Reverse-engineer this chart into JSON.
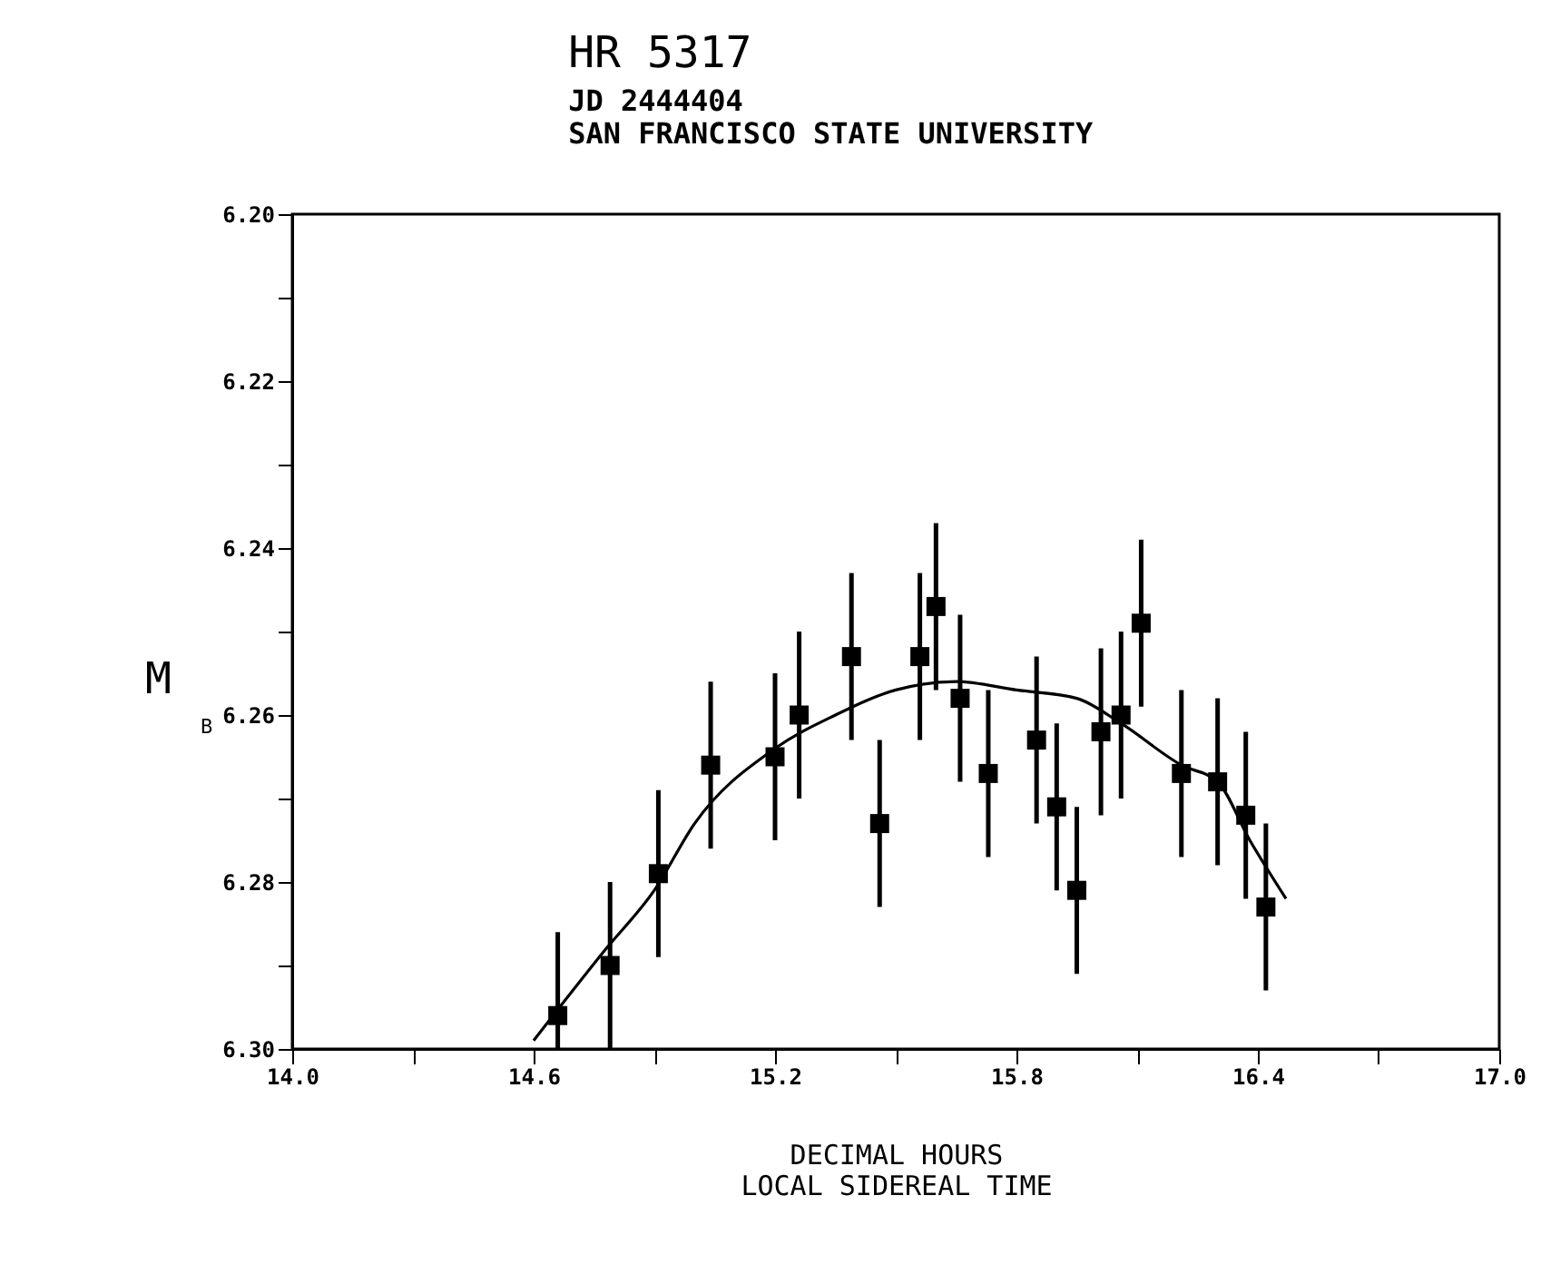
{
  "chart_data": {
    "type": "scatter",
    "title": "HR 5317",
    "subtitle": "JD  2444404",
    "xlabel": "DECIMAL HOURS",
    "ylabel": "M$_{B}$",
    "annotations": [
      "SAN FRANCISCO STATE UNIVERSITY",
      "LOCAL SIDEREAL TIME"
    ],
    "xlim": [
      14.0,
      17.0
    ],
    "ylim": [
      6.3,
      6.2
    ],
    "xticks": [
      {
        "value": 14.0,
        "label": "14.0"
      },
      {
        "value": 14.3,
        "label": null
      },
      {
        "value": 14.6,
        "label": "14.6"
      },
      {
        "value": 14.9,
        "label": null
      },
      {
        "value": 15.2,
        "label": "15.2"
      },
      {
        "value": 15.5,
        "label": null
      },
      {
        "value": 15.8,
        "label": "15.8"
      },
      {
        "value": 16.1,
        "label": null
      },
      {
        "value": 16.4,
        "label": "16.4"
      },
      {
        "value": 16.7,
        "label": null
      },
      {
        "value": 17.0,
        "label": "17.0"
      }
    ],
    "yticks": [
      {
        "value": 6.2,
        "label": "6.20"
      },
      {
        "value": 6.21,
        "label": null
      },
      {
        "value": 6.22,
        "label": "6.22"
      },
      {
        "value": 6.23,
        "label": null
      },
      {
        "value": 6.24,
        "label": "6.24"
      },
      {
        "value": 6.25,
        "label": null
      },
      {
        "value": 6.26,
        "label": "6.26"
      },
      {
        "value": 6.27,
        "label": null
      },
      {
        "value": 6.28,
        "label": "6.28"
      },
      {
        "value": 6.29,
        "label": null
      },
      {
        "value": 6.3,
        "label": "6.30"
      }
    ],
    "grid": false,
    "series": [
      {
        "color": "#000000",
        "marker": "square",
        "x": [
          14.66,
          14.79,
          14.91,
          15.04,
          15.2,
          15.26,
          15.39,
          15.46,
          15.56,
          15.6,
          15.66,
          15.73,
          15.85,
          15.9,
          15.95,
          16.01,
          16.06,
          16.11,
          16.21,
          16.3,
          16.37,
          16.42
        ],
        "values": [
          6.296,
          6.29,
          6.279,
          6.266,
          6.265,
          6.26,
          6.253,
          6.273,
          6.253,
          6.247,
          6.258,
          6.267,
          6.263,
          6.271,
          6.281,
          6.262,
          6.26,
          6.249,
          6.267,
          6.268,
          6.272,
          6.283
        ],
        "errors": [
          [
            6.286,
            6.3
          ],
          [
            6.28,
            6.3
          ],
          0.01,
          0.01,
          0.01,
          0.01,
          0.01,
          0.01,
          0.01,
          0.01,
          0.01,
          0.01,
          0.01,
          0.01,
          0.01,
          0.01,
          0.01,
          0.01,
          0.01,
          0.01,
          0.01,
          0.01
        ]
      },
      {
        "type": "line",
        "marker": "none",
        "color": "#000000",
        "x": [
          14.6,
          14.78,
          14.9,
          15.0,
          15.2,
          15.35,
          15.5,
          15.65,
          15.8,
          15.95,
          16.06,
          16.21,
          16.3,
          16.38,
          16.47
        ],
        "values": [
          6.299,
          6.288,
          6.281,
          6.273,
          6.264,
          6.26,
          6.257,
          6.256,
          6.257,
          6.258,
          6.261,
          6.266,
          6.268,
          6.275,
          6.282
        ]
      }
    ]
  }
}
